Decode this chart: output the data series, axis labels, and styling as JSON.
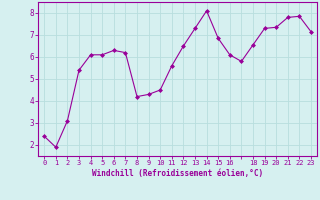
{
  "x": [
    0,
    1,
    2,
    3,
    4,
    5,
    6,
    7,
    8,
    9,
    10,
    11,
    12,
    13,
    14,
    15,
    16,
    17,
    18,
    19,
    20,
    21,
    22,
    23
  ],
  "y": [
    2.4,
    1.9,
    3.1,
    5.4,
    6.1,
    6.1,
    6.3,
    6.2,
    4.2,
    4.3,
    4.5,
    5.6,
    6.5,
    7.3,
    8.1,
    6.85,
    6.1,
    5.8,
    6.55,
    7.3,
    7.35,
    7.8,
    7.85,
    7.15
  ],
  "line_color": "#990099",
  "marker": "D",
  "marker_size": 2,
  "bg_color": "#d6f0f0",
  "grid_color": "#b8dede",
  "xlabel": "Windchill (Refroidissement éolien,°C)",
  "xlabel_color": "#990099",
  "tick_color": "#990099",
  "ylim": [
    1.5,
    8.5
  ],
  "xlim": [
    -0.5,
    23.5
  ],
  "yticks": [
    2,
    3,
    4,
    5,
    6,
    7,
    8
  ],
  "xtick_labels": [
    "0",
    "1",
    "2",
    "3",
    "4",
    "5",
    "6",
    "7",
    "8",
    "9",
    "10",
    "11",
    "12",
    "13",
    "14",
    "15",
    "16",
    "",
    "18",
    "19",
    "20",
    "21",
    "22",
    "23"
  ],
  "xtick_positions": [
    0,
    1,
    2,
    3,
    4,
    5,
    6,
    7,
    8,
    9,
    10,
    11,
    12,
    13,
    14,
    15,
    16,
    17,
    18,
    19,
    20,
    21,
    22,
    23
  ],
  "spine_color": "#990099",
  "tick_fontsize": 5,
  "xlabel_fontsize": 5.5,
  "ytick_fontsize": 5.5
}
